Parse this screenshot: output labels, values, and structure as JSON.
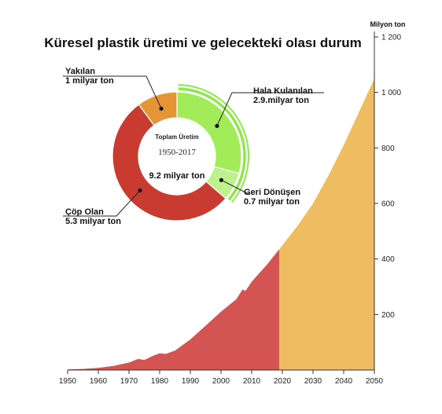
{
  "title": "Küresel plastik üretimi ve gelecekteki olası durum",
  "chart_data": [
    {
      "type": "area",
      "ylabel": "Milyon ton",
      "xlim": [
        1950,
        2050
      ],
      "ylim": [
        0,
        1200
      ],
      "x_ticks": [
        1950,
        1960,
        1970,
        1980,
        1990,
        2000,
        2010,
        2020,
        2030,
        2040,
        2050
      ],
      "y_ticks": [
        200,
        400,
        600,
        800,
        1000,
        1200
      ],
      "y_tick_labels": [
        "200",
        "400",
        "600",
        "800",
        "1 000",
        "1 200"
      ],
      "colors": {
        "historical": "#d45353",
        "projection": "#eebd62"
      },
      "series": [
        {
          "x": [
            1950,
            1955,
            1960,
            1965,
            1970,
            1973,
            1975,
            1978,
            1980,
            1982,
            1985,
            1990,
            1995,
            2000,
            2005,
            2007,
            2008,
            2010,
            2015,
            2019
          ],
          "values": [
            2,
            4,
            8,
            15,
            27,
            40,
            36,
            52,
            60,
            58,
            70,
            110,
            160,
            210,
            255,
            290,
            285,
            318,
            380,
            435
          ]
        },
        {
          "x": [
            2019,
            2025,
            2030,
            2035,
            2040,
            2045,
            2050
          ],
          "values": [
            435,
            520,
            600,
            700,
            810,
            930,
            1050
          ]
        }
      ]
    },
    {
      "type": "pie",
      "center_title": "Toplam Üretim",
      "center_years": "1950-2017",
      "center_total": "9.2 milyar ton",
      "slices": [
        {
          "label": "Hala Kulanılan",
          "value_text": "2.9.milyar ton",
          "value": 2.9,
          "color": "#a2ec5a"
        },
        {
          "label": "Geri Dönüşen",
          "value_text": "0.7 milyar ton",
          "value": 0.7,
          "color": "#bff28f"
        },
        {
          "label": "Çöp Olan",
          "value_text": "5.3 milyar ton",
          "value": 5.3,
          "color": "#c93b30"
        },
        {
          "label": "Yakılan",
          "value_text": "1 milyar ton",
          "value": 1.0,
          "color": "#e59436"
        }
      ],
      "highlight_color": "#8ee84a"
    }
  ]
}
